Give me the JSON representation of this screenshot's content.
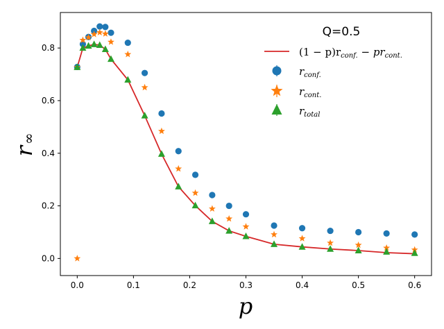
{
  "chart_data": {
    "type": "scatter",
    "title": "",
    "xlabel": "p",
    "ylabel": "r",
    "ylabel_sub": "∞",
    "xlim": [
      -0.03,
      0.63
    ],
    "ylim": [
      -0.065,
      0.935
    ],
    "x_ticks": [
      0.0,
      0.1,
      0.2,
      0.3,
      0.4,
      0.5,
      0.6
    ],
    "x_tick_labels": [
      "0.0",
      "0.1",
      "0.2",
      "0.3",
      "0.4",
      "0.5",
      "0.6"
    ],
    "y_ticks": [
      0.0,
      0.2,
      0.4,
      0.6,
      0.8
    ],
    "y_tick_labels": [
      "0.0",
      "0.2",
      "0.4",
      "0.6",
      "0.8"
    ],
    "grid": false,
    "legend": {
      "title": "Q=0.5",
      "placement": "top-right",
      "entries": [
        {
          "series": "line",
          "label_main": "(1 − p)r",
          "label_sub1": "conf.",
          "label_mid": " − pr",
          "label_sub2": "cont."
        },
        {
          "series": "conf",
          "label_main": "r",
          "label_sub1": "conf."
        },
        {
          "series": "cont",
          "label_main": "r",
          "label_sub1": "cont."
        },
        {
          "series": "total",
          "label_main": "r",
          "label_sub1": "total"
        }
      ]
    },
    "series": [
      {
        "key": "conf",
        "name": "r_conf.",
        "marker": "circle",
        "color": "#1f77b4",
        "x": [
          0.0,
          0.01,
          0.02,
          0.03,
          0.04,
          0.05,
          0.06,
          0.09,
          0.12,
          0.15,
          0.18,
          0.21,
          0.24,
          0.27,
          0.3,
          0.35,
          0.4,
          0.45,
          0.5,
          0.55,
          0.6
        ],
        "y": [
          0.728,
          0.815,
          0.842,
          0.865,
          0.882,
          0.88,
          0.858,
          0.82,
          0.705,
          0.551,
          0.408,
          0.318,
          0.241,
          0.2,
          0.168,
          0.125,
          0.115,
          0.105,
          0.1,
          0.095,
          0.091
        ]
      },
      {
        "key": "cont",
        "name": "r_cont.",
        "marker": "star",
        "color": "#ff7f0e",
        "x": [
          0.0,
          0.0,
          0.01,
          0.02,
          0.03,
          0.04,
          0.05,
          0.06,
          0.09,
          0.12,
          0.15,
          0.18,
          0.21,
          0.24,
          0.27,
          0.3,
          0.35,
          0.4,
          0.45,
          0.5,
          0.55,
          0.6
        ],
        "y": [
          0.0,
          0.727,
          0.83,
          0.84,
          0.852,
          0.859,
          0.854,
          0.823,
          0.776,
          0.65,
          0.484,
          0.341,
          0.249,
          0.189,
          0.151,
          0.121,
          0.091,
          0.076,
          0.059,
          0.051,
          0.04,
          0.033
        ]
      },
      {
        "key": "total",
        "name": "r_total",
        "marker": "triangle",
        "color": "#2ca02c",
        "x": [
          0.0,
          0.01,
          0.02,
          0.03,
          0.04,
          0.05,
          0.06,
          0.09,
          0.12,
          0.15,
          0.18,
          0.21,
          0.24,
          0.27,
          0.3,
          0.35,
          0.4,
          0.45,
          0.5,
          0.55,
          0.6
        ],
        "y": [
          0.727,
          0.8,
          0.808,
          0.814,
          0.811,
          0.795,
          0.758,
          0.679,
          0.543,
          0.397,
          0.273,
          0.201,
          0.141,
          0.105,
          0.084,
          0.054,
          0.044,
          0.036,
          0.03,
          0.025,
          0.02
        ]
      },
      {
        "key": "line",
        "name": "(1-p)r_conf. - p r_cont.",
        "marker": "line",
        "color": "#d62728",
        "x": [
          0.0,
          0.01,
          0.02,
          0.03,
          0.04,
          0.05,
          0.06,
          0.09,
          0.12,
          0.15,
          0.18,
          0.21,
          0.24,
          0.27,
          0.3,
          0.35,
          0.4,
          0.45,
          0.5,
          0.55,
          0.6
        ],
        "y": [
          0.727,
          0.8,
          0.808,
          0.814,
          0.811,
          0.795,
          0.758,
          0.679,
          0.543,
          0.397,
          0.273,
          0.201,
          0.141,
          0.105,
          0.084,
          0.054,
          0.044,
          0.036,
          0.03,
          0.022,
          0.018
        ]
      }
    ]
  }
}
